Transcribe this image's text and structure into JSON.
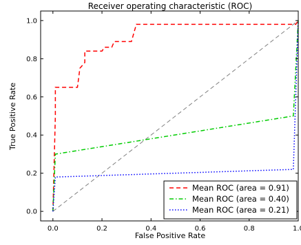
{
  "chart_data": {
    "type": "line",
    "title": "Receiver operating characteristic (ROC)",
    "xlabel": "False Positive Rate",
    "ylabel": "True Positive Rate",
    "xlim": [
      -0.05,
      1.0
    ],
    "ylim": [
      -0.05,
      1.05
    ],
    "xticks": [
      0.0,
      0.2,
      0.4,
      0.6,
      0.8,
      1.0
    ],
    "xtick_labels": [
      "0.0",
      "0.2",
      "0.4",
      "0.6",
      "0.8",
      "1.0"
    ],
    "yticks": [
      0.0,
      0.2,
      0.4,
      0.6,
      0.8,
      1.0
    ],
    "ytick_labels": [
      "0.0",
      "0.2",
      "0.4",
      "0.6",
      "0.8",
      "1.0"
    ],
    "grid": false,
    "legend_position": "lower-right",
    "series": [
      {
        "name": "Mean ROC (area = 0.91)",
        "color": "#ff0000",
        "style": "dashed",
        "x": [
          0.0,
          0.01,
          0.01,
          0.1,
          0.11,
          0.13,
          0.13,
          0.2,
          0.21,
          0.24,
          0.25,
          0.32,
          0.34,
          0.99,
          1.0
        ],
        "y": [
          0.0,
          0.5,
          0.65,
          0.65,
          0.75,
          0.78,
          0.84,
          0.84,
          0.86,
          0.86,
          0.89,
          0.89,
          0.98,
          0.98,
          1.0
        ]
      },
      {
        "name": "Mean ROC (area = 0.40)",
        "color": "#00cc00",
        "style": "dashdot",
        "x": [
          0.0,
          0.01,
          0.98,
          1.0
        ],
        "y": [
          0.0,
          0.3,
          0.5,
          1.0
        ]
      },
      {
        "name": "Mean ROC (area = 0.21)",
        "color": "#0000ff",
        "style": "dotted",
        "x": [
          0.0,
          0.01,
          0.98,
          1.0
        ],
        "y": [
          0.0,
          0.18,
          0.22,
          1.0
        ]
      }
    ],
    "reference_line": {
      "color": "#808080",
      "style": "dashed",
      "x": [
        0.0,
        1.0
      ],
      "y": [
        0.0,
        1.0
      ]
    }
  }
}
